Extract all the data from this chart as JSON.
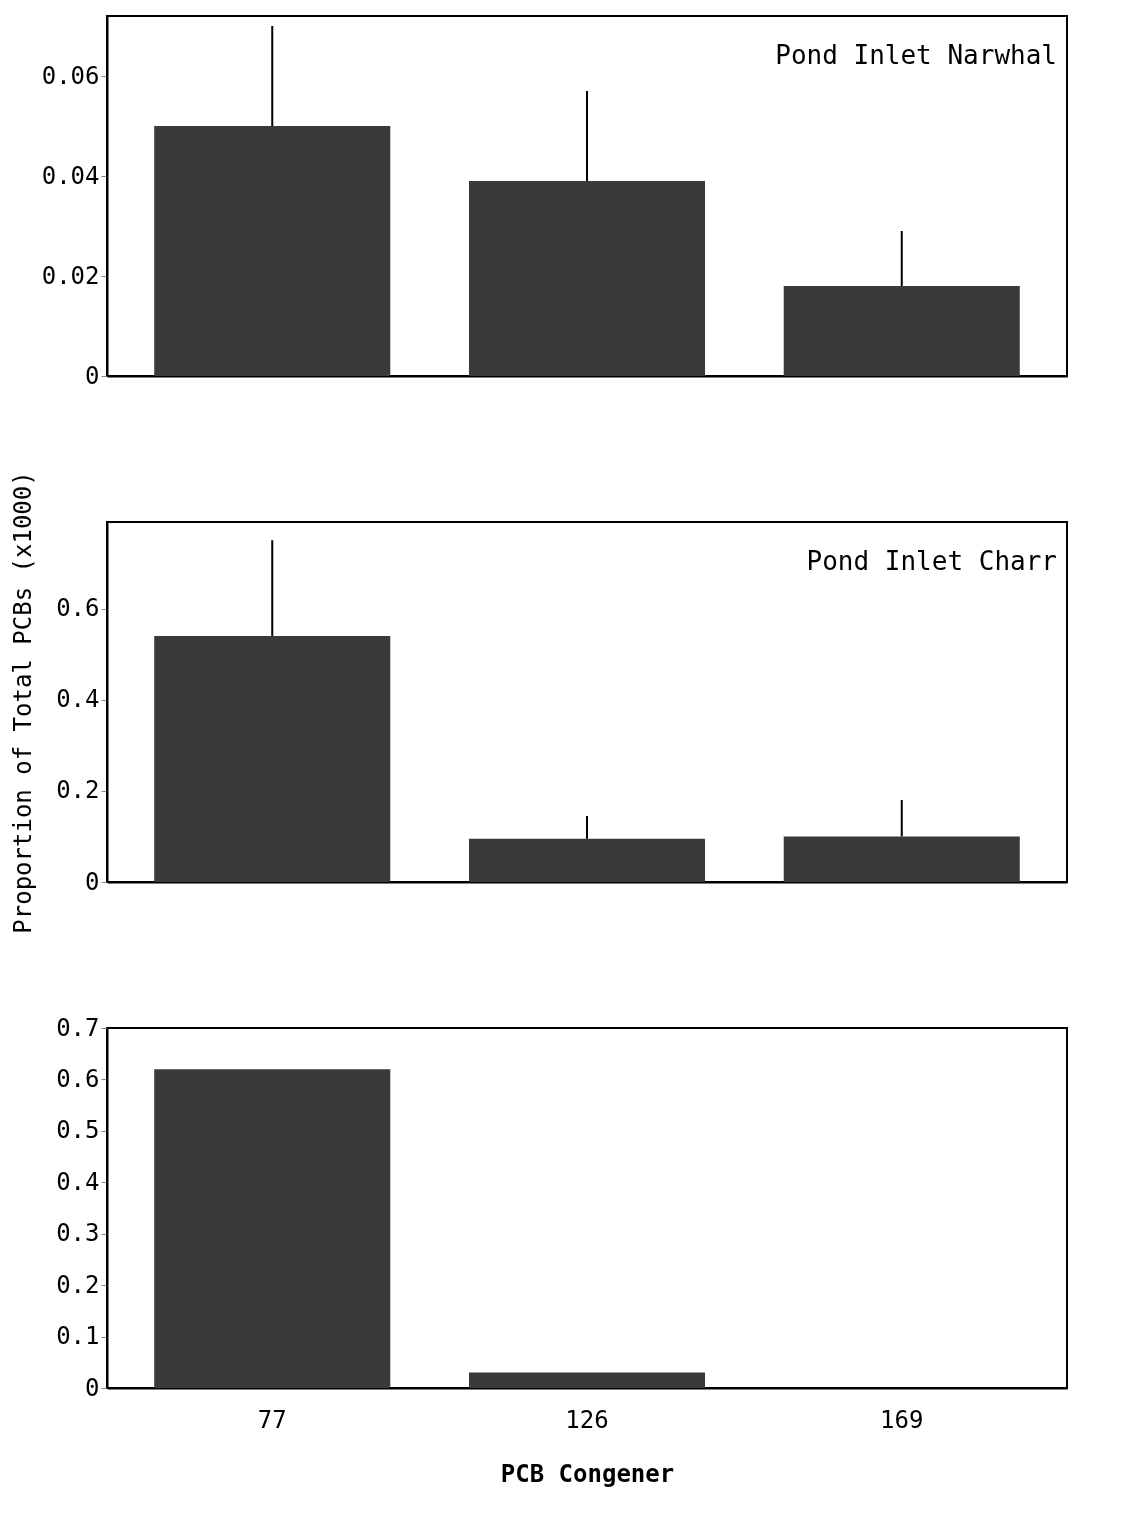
{
  "chart_data": [
    {
      "type": "bar",
      "annotations": [
        "Pond Inlet Narwhal"
      ],
      "categories": [
        "77",
        "126",
        "169"
      ],
      "values": [
        0.05,
        0.039,
        0.018
      ],
      "errors": [
        [
          0.05,
          0.07
        ],
        [
          0.039,
          0.057
        ],
        [
          0.018,
          0.029
        ]
      ],
      "color": "#3a3a3a",
      "ylim": [
        0,
        0.072
      ],
      "yticks": [
        0,
        0.02,
        0.04,
        0.06
      ],
      "tick_labels": "y",
      "grid": false
    },
    {
      "type": "bar",
      "annotations": [
        "Pond Inlet Charr"
      ],
      "ylabel": "Proportion of Total PCBs (x1000)",
      "categories": [
        "77",
        "126",
        "169"
      ],
      "values": [
        0.54,
        0.095,
        0.1
      ],
      "errors": [
        [
          0.54,
          0.75
        ],
        [
          0.095,
          0.145
        ],
        [
          0.1,
          0.18
        ]
      ],
      "color": "#3a3a3a",
      "ylim": [
        0,
        0.79
      ],
      "yticks": [
        0,
        0.2,
        0.4,
        0.6
      ],
      "tick_labels": "y",
      "grid": false
    },
    {
      "type": "bar",
      "xlabel": "PCB Congener",
      "categories": [
        "77",
        "126",
        "169"
      ],
      "values": [
        0.62,
        0.03,
        0
      ],
      "color": "#3a3a3a",
      "ylim": [
        0,
        0.7
      ],
      "yticks": [
        0,
        0.1,
        0.2,
        0.3,
        0.4,
        0.5,
        0.6,
        0.7
      ],
      "grid": false
    }
  ]
}
